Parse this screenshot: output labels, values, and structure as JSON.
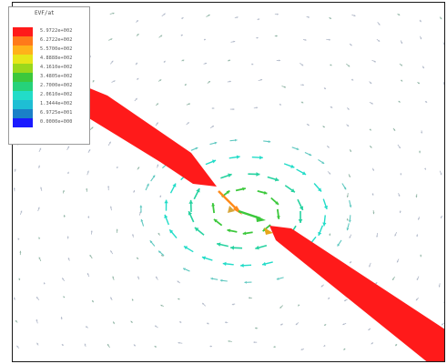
{
  "legend": {
    "title": "EVF/at",
    "entries": [
      {
        "value": "5.9722e+002",
        "color": "#ff1a1a"
      },
      {
        "value": "6.2722e+002",
        "color": "#ff7a1a"
      },
      {
        "value": "5.5700e+002",
        "color": "#ffb21a"
      },
      {
        "value": "4.8888e+002",
        "color": "#e6e619"
      },
      {
        "value": "4.1610e+002",
        "color": "#9ad81c"
      },
      {
        "value": "3.4805e+002",
        "color": "#3cc83c"
      },
      {
        "value": "2.7000e+002",
        "color": "#26d27a"
      },
      {
        "value": "2.0610e+002",
        "color": "#22dcc8"
      },
      {
        "value": "1.3444e+002",
        "color": "#1ebed4"
      },
      {
        "value": "6.9725e+001",
        "color": "#1a80c8"
      },
      {
        "value": "0.0000e+000",
        "color": "#1a1aff"
      }
    ]
  },
  "colors": {
    "high": "#ff1a1a",
    "mid": "#3cc83c",
    "low": "#22dcc8",
    "faint": "#a8b4c8"
  }
}
